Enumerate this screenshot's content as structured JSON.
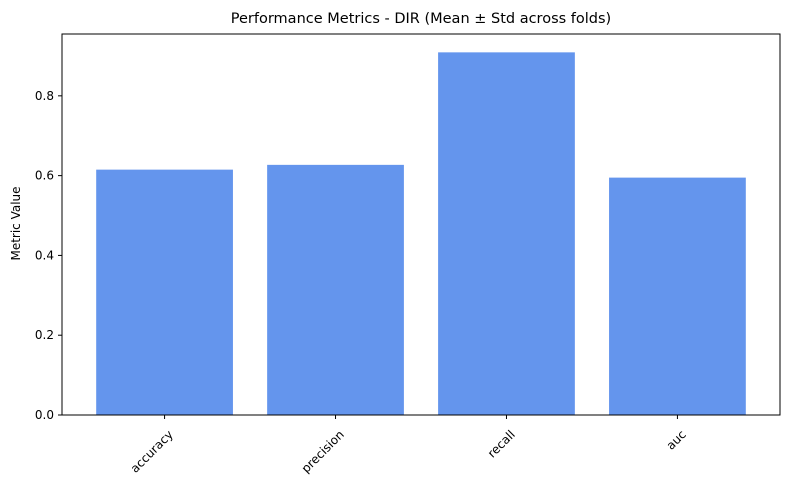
{
  "chart_data": {
    "type": "bar",
    "title": "Performance Metrics - DIR (Mean ± Std across folds)",
    "xlabel": "",
    "ylabel": "Metric Value",
    "categories": [
      "accuracy",
      "precision",
      "recall",
      "auc"
    ],
    "values": [
      0.615,
      0.627,
      0.909,
      0.595
    ],
    "ylim": [
      0,
      0.955
    ],
    "yticks": [
      0.0,
      0.2,
      0.4,
      0.6,
      0.8
    ],
    "ytick_labels": [
      "0.0",
      "0.2",
      "0.4",
      "0.6",
      "0.8"
    ],
    "bar_color": "#6495ED",
    "grid": false,
    "legend": "none"
  }
}
